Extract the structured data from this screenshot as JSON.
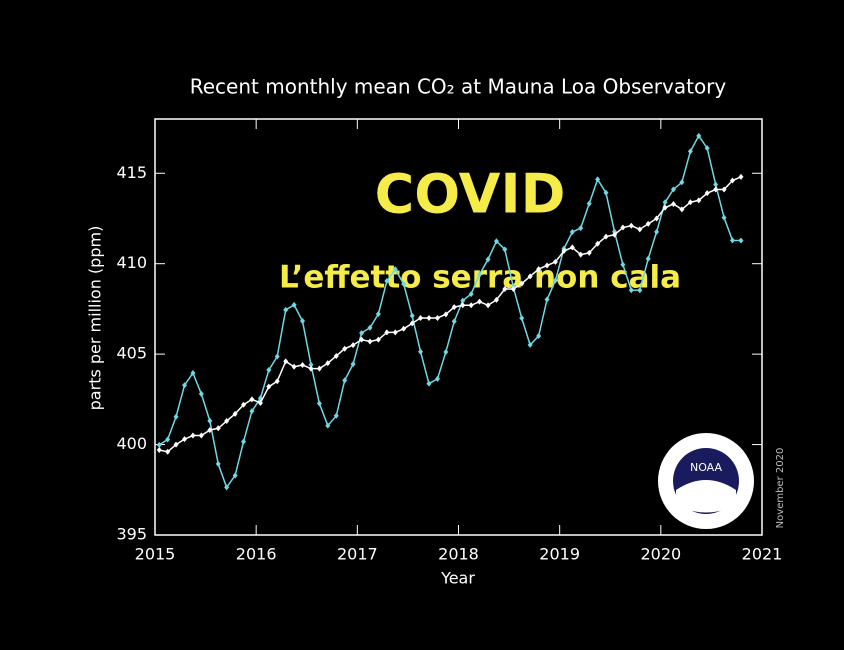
{
  "chart_data": {
    "type": "line",
    "title": "Recent monthly mean CO₂ at Mauna Loa Observatory",
    "xlabel": "Year",
    "ylabel": "parts per million (ppm)",
    "annotations": [
      "COVID",
      "L’effetto serra non cala"
    ],
    "date_note": "November 2020",
    "logo": "NOAA",
    "xlim": [
      2015,
      2021
    ],
    "xticks": [
      2015,
      2016,
      2017,
      2018,
      2019,
      2020,
      2021
    ],
    "ylim": [
      395,
      418
    ],
    "yticks": [
      395,
      400,
      405,
      410,
      415
    ],
    "x": [
      2015.042,
      2015.125,
      2015.208,
      2015.292,
      2015.375,
      2015.458,
      2015.542,
      2015.625,
      2015.708,
      2015.792,
      2015.875,
      2015.958,
      2016.042,
      2016.125,
      2016.208,
      2016.292,
      2016.375,
      2016.458,
      2016.542,
      2016.625,
      2016.708,
      2016.792,
      2016.875,
      2016.958,
      2017.042,
      2017.125,
      2017.208,
      2017.292,
      2017.375,
      2017.458,
      2017.542,
      2017.625,
      2017.708,
      2017.792,
      2017.875,
      2017.958,
      2018.042,
      2018.125,
      2018.208,
      2018.292,
      2018.375,
      2018.458,
      2018.542,
      2018.625,
      2018.708,
      2018.792,
      2018.875,
      2018.958,
      2019.042,
      2019.125,
      2019.208,
      2019.292,
      2019.375,
      2019.458,
      2019.542,
      2019.625,
      2019.708,
      2019.792,
      2019.875,
      2019.958,
      2020.042,
      2020.125,
      2020.208,
      2020.292,
      2020.375,
      2020.458,
      2020.542,
      2020.625,
      2020.708,
      2020.792
    ],
    "series": [
      {
        "color": "#6fd8e4",
        "values": [
          399.98,
          400.28,
          401.54,
          403.28,
          403.96,
          402.8,
          401.31,
          398.93,
          397.63,
          398.29,
          400.16,
          401.85,
          402.56,
          404.12,
          404.87,
          407.45,
          407.72,
          406.83,
          404.41,
          402.27,
          401.05,
          401.59,
          403.55,
          404.45,
          406.17,
          406.46,
          407.22,
          409.04,
          409.69,
          408.88,
          407.12,
          405.13,
          403.37,
          403.63,
          405.12,
          406.81,
          407.96,
          408.32,
          409.41,
          410.24,
          411.24,
          410.79,
          408.71,
          406.99,
          405.51,
          406.0,
          408.02,
          409.07,
          410.83,
          411.75,
          411.97,
          413.32,
          414.66,
          413.92,
          411.77,
          409.95,
          408.54,
          408.53,
          410.27,
          411.76,
          413.4,
          414.11,
          414.5,
          416.21,
          417.07,
          416.39,
          414.38,
          412.55,
          411.29,
          411.28
        ]
      },
      {
        "color": "#ffffff",
        "values": [
          399.7,
          399.6,
          400.0,
          400.3,
          400.5,
          400.5,
          400.8,
          400.9,
          401.3,
          401.7,
          402.2,
          402.5,
          402.3,
          403.2,
          403.5,
          404.6,
          404.3,
          404.4,
          404.2,
          404.2,
          404.5,
          404.9,
          405.3,
          405.5,
          405.8,
          405.7,
          405.8,
          406.2,
          406.2,
          406.4,
          406.7,
          407.0,
          407.0,
          407.0,
          407.2,
          407.6,
          407.7,
          407.7,
          407.9,
          407.7,
          408.0,
          408.6,
          408.6,
          408.9,
          409.3,
          409.7,
          409.9,
          410.1,
          410.7,
          410.9,
          410.5,
          410.6,
          411.1,
          411.5,
          411.6,
          412.0,
          412.1,
          411.9,
          412.2,
          412.5,
          413.1,
          413.3,
          413.0,
          413.4,
          413.5,
          413.9,
          414.1,
          414.1,
          414.6,
          414.8
        ]
      }
    ]
  }
}
